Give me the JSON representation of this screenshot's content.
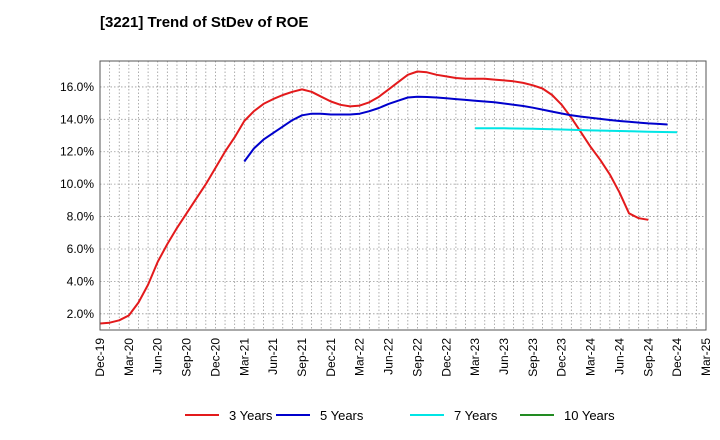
{
  "title": "[3221]  Trend of StDev of ROE",
  "chart_data": {
    "type": "line",
    "title": "[3221]  Trend of StDev of ROE",
    "xlabel": "",
    "ylabel": "",
    "x_ticks": [
      "Dec-19",
      "Mar-20",
      "Jun-20",
      "Sep-20",
      "Dec-20",
      "Mar-21",
      "Jun-21",
      "Sep-21",
      "Dec-21",
      "Mar-22",
      "Jun-22",
      "Sep-22",
      "Dec-22",
      "Mar-23",
      "Jun-23",
      "Sep-23",
      "Dec-23",
      "Mar-24",
      "Jun-24",
      "Sep-24",
      "Dec-24",
      "Mar-25"
    ],
    "y_ticks": [
      "2.0%",
      "4.0%",
      "6.0%",
      "8.0%",
      "10.0%",
      "12.0%",
      "14.0%",
      "16.0%"
    ],
    "ylim": [
      1.0,
      17.6
    ],
    "grid": true,
    "legend_position": "bottom",
    "series": [
      {
        "name": "3 Years",
        "color": "#e31a1c",
        "points": [
          [
            "Dec-19",
            1.4
          ],
          [
            "Jan-20",
            1.45
          ],
          [
            "Feb-20",
            1.6
          ],
          [
            "Mar-20",
            1.9
          ],
          [
            "Apr-20",
            2.7
          ],
          [
            "May-20",
            3.8
          ],
          [
            "Jun-20",
            5.2
          ],
          [
            "Jul-20",
            6.3
          ],
          [
            "Aug-20",
            7.3
          ],
          [
            "Sep-20",
            8.2
          ],
          [
            "Oct-20",
            9.1
          ],
          [
            "Nov-20",
            10.0
          ],
          [
            "Dec-20",
            11.0
          ],
          [
            "Jan-21",
            12.0
          ],
          [
            "Feb-21",
            12.9
          ],
          [
            "Mar-21",
            13.9
          ],
          [
            "Apr-21",
            14.5
          ],
          [
            "May-21",
            14.95
          ],
          [
            "Jun-21",
            15.25
          ],
          [
            "Jul-21",
            15.5
          ],
          [
            "Aug-21",
            15.7
          ],
          [
            "Sep-21",
            15.85
          ],
          [
            "Oct-21",
            15.7
          ],
          [
            "Nov-21",
            15.4
          ],
          [
            "Dec-21",
            15.1
          ],
          [
            "Jan-22",
            14.9
          ],
          [
            "Feb-22",
            14.8
          ],
          [
            "Mar-22",
            14.85
          ],
          [
            "Apr-22",
            15.05
          ],
          [
            "May-22",
            15.4
          ],
          [
            "Jun-22",
            15.85
          ],
          [
            "Jul-22",
            16.3
          ],
          [
            "Aug-22",
            16.75
          ],
          [
            "Sep-22",
            16.95
          ],
          [
            "Oct-22",
            16.9
          ],
          [
            "Nov-22",
            16.75
          ],
          [
            "Dec-22",
            16.65
          ],
          [
            "Jan-23",
            16.55
          ],
          [
            "Feb-23",
            16.5
          ],
          [
            "Mar-23",
            16.5
          ],
          [
            "Apr-23",
            16.5
          ],
          [
            "May-23",
            16.45
          ],
          [
            "Jun-23",
            16.4
          ],
          [
            "Jul-23",
            16.35
          ],
          [
            "Aug-23",
            16.25
          ],
          [
            "Sep-23",
            16.1
          ],
          [
            "Oct-23",
            15.9
          ],
          [
            "Nov-23",
            15.5
          ],
          [
            "Dec-23",
            14.9
          ],
          [
            "Jan-24",
            14.1
          ],
          [
            "Feb-24",
            13.2
          ],
          [
            "Mar-24",
            12.3
          ],
          [
            "Apr-24",
            11.5
          ],
          [
            "May-24",
            10.6
          ],
          [
            "Jun-24",
            9.5
          ],
          [
            "Jul-24",
            8.2
          ],
          [
            "Aug-24",
            7.9
          ],
          [
            "Sep-24",
            7.8
          ]
        ]
      },
      {
        "name": "5 Years",
        "color": "#0000cc",
        "points": [
          [
            "Mar-21",
            11.4
          ],
          [
            "Apr-21",
            12.2
          ],
          [
            "May-21",
            12.75
          ],
          [
            "Jun-21",
            13.15
          ],
          [
            "Jul-21",
            13.55
          ],
          [
            "Aug-21",
            13.95
          ],
          [
            "Sep-21",
            14.25
          ],
          [
            "Oct-21",
            14.35
          ],
          [
            "Nov-21",
            14.35
          ],
          [
            "Dec-21",
            14.3
          ],
          [
            "Jan-22",
            14.3
          ],
          [
            "Feb-22",
            14.3
          ],
          [
            "Mar-22",
            14.35
          ],
          [
            "Apr-22",
            14.5
          ],
          [
            "May-22",
            14.7
          ],
          [
            "Jun-22",
            14.95
          ],
          [
            "Jul-22",
            15.15
          ],
          [
            "Aug-22",
            15.35
          ],
          [
            "Sep-22",
            15.4
          ],
          [
            "Oct-22",
            15.38
          ],
          [
            "Nov-22",
            15.35
          ],
          [
            "Dec-22",
            15.3
          ],
          [
            "Jan-23",
            15.25
          ],
          [
            "Feb-23",
            15.2
          ],
          [
            "Mar-23",
            15.15
          ],
          [
            "Apr-23",
            15.1
          ],
          [
            "May-23",
            15.05
          ],
          [
            "Jun-23",
            14.98
          ],
          [
            "Jul-23",
            14.9
          ],
          [
            "Aug-23",
            14.82
          ],
          [
            "Sep-23",
            14.72
          ],
          [
            "Oct-23",
            14.6
          ],
          [
            "Nov-23",
            14.48
          ],
          [
            "Dec-23",
            14.36
          ],
          [
            "Jan-24",
            14.25
          ],
          [
            "Feb-24",
            14.17
          ],
          [
            "Mar-24",
            14.1
          ],
          [
            "Apr-24",
            14.03
          ],
          [
            "May-24",
            13.96
          ],
          [
            "Jun-24",
            13.9
          ],
          [
            "Jul-24",
            13.85
          ],
          [
            "Aug-24",
            13.8
          ],
          [
            "Sep-24",
            13.75
          ],
          [
            "Oct-24",
            13.72
          ],
          [
            "Nov-24",
            13.68
          ]
        ]
      },
      {
        "name": "7 Years",
        "color": "#00e5e5",
        "points": [
          [
            "Mar-23",
            13.45
          ],
          [
            "Jun-23",
            13.45
          ],
          [
            "Sep-23",
            13.42
          ],
          [
            "Dec-23",
            13.37
          ],
          [
            "Mar-24",
            13.32
          ],
          [
            "Jun-24",
            13.28
          ],
          [
            "Sep-24",
            13.24
          ],
          [
            "Dec-24",
            13.2
          ]
        ]
      },
      {
        "name": "10 Years",
        "color": "#228b22",
        "points": []
      }
    ]
  }
}
